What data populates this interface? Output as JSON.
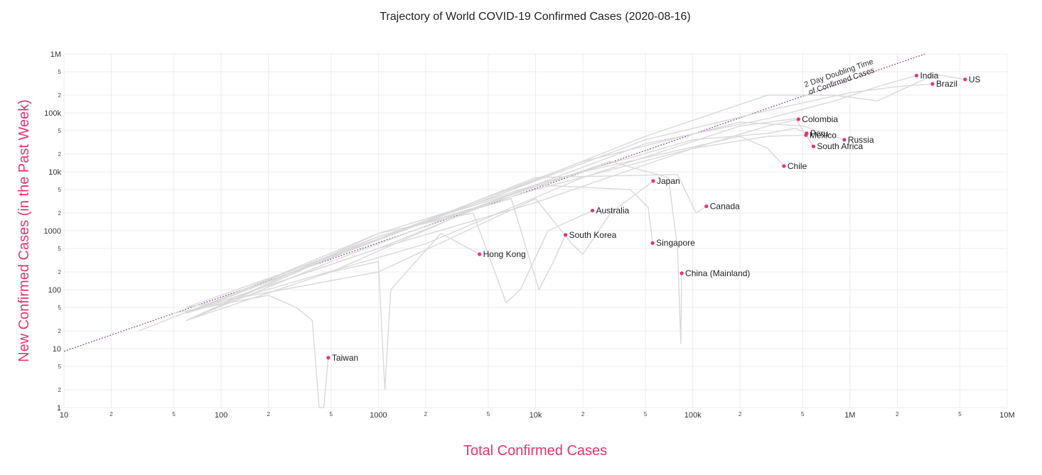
{
  "chart_data": {
    "type": "line",
    "title": "Trajectory of World COVID-19 Confirmed Cases (2020-08-16)",
    "xlabel": "Total Confirmed Cases",
    "ylabel": "New Confirmed Cases (in the Past Week)",
    "x_scale": "log",
    "y_scale": "log",
    "xlim": [
      10,
      10000000
    ],
    "ylim": [
      1,
      1000000
    ],
    "grid": true,
    "accent_color": "#e8336d",
    "trajectory_color": "#d9d9d9",
    "reference_line_color": "#8a4f8a",
    "x_major_ticks": [
      {
        "value": 10,
        "label": "10"
      },
      {
        "value": 100,
        "label": "100"
      },
      {
        "value": 1000,
        "label": "1000"
      },
      {
        "value": 10000,
        "label": "10k"
      },
      {
        "value": 100000,
        "label": "100k"
      },
      {
        "value": 1000000,
        "label": "1M"
      },
      {
        "value": 10000000,
        "label": "10M"
      }
    ],
    "x_minor_ticks": [
      {
        "value": 20,
        "label": "2"
      },
      {
        "value": 50,
        "label": "5"
      },
      {
        "value": 200,
        "label": "2"
      },
      {
        "value": 500,
        "label": "5"
      },
      {
        "value": 2000,
        "label": "2"
      },
      {
        "value": 5000,
        "label": "5"
      },
      {
        "value": 20000,
        "label": "2"
      },
      {
        "value": 50000,
        "label": "5"
      },
      {
        "value": 200000,
        "label": "2"
      },
      {
        "value": 500000,
        "label": "5"
      },
      {
        "value": 2000000,
        "label": "2"
      },
      {
        "value": 5000000,
        "label": "5"
      }
    ],
    "y_major_ticks": [
      {
        "value": 1,
        "label": "1"
      },
      {
        "value": 10,
        "label": "10"
      },
      {
        "value": 100,
        "label": "100"
      },
      {
        "value": 1000,
        "label": "1000"
      },
      {
        "value": 10000,
        "label": "10k"
      },
      {
        "value": 100000,
        "label": "100k"
      },
      {
        "value": 1000000,
        "label": "1M"
      }
    ],
    "y_minor_ticks": [
      {
        "value": 2,
        "label": "2"
      },
      {
        "value": 5,
        "label": "5"
      },
      {
        "value": 20,
        "label": "2"
      },
      {
        "value": 50,
        "label": "5"
      },
      {
        "value": 200,
        "label": "2"
      },
      {
        "value": 500,
        "label": "5"
      },
      {
        "value": 2000,
        "label": "2"
      },
      {
        "value": 5000,
        "label": "5"
      },
      {
        "value": 20000,
        "label": "2"
      },
      {
        "value": 50000,
        "label": "5"
      },
      {
        "value": 200000,
        "label": "2"
      },
      {
        "value": 500000,
        "label": "5"
      }
    ],
    "reference_line": {
      "label_line1": "2 Day Doubling Time",
      "label_line2": "of Confirmed Cases",
      "points": [
        [
          10,
          9
        ],
        [
          3000000,
          1000000
        ]
      ]
    },
    "series": [
      {
        "name": "US",
        "end": [
          5400000,
          370000
        ],
        "points": [
          [
            60,
            50
          ],
          [
            400,
            300
          ],
          [
            5000,
            3500
          ],
          [
            50000,
            40000
          ],
          [
            300000,
            200000
          ],
          [
            800000,
            200000
          ],
          [
            1500000,
            160000
          ],
          [
            2500000,
            300000
          ],
          [
            3500000,
            450000
          ],
          [
            5400000,
            370000
          ]
        ]
      },
      {
        "name": "India",
        "end": [
          2650000,
          430000
        ],
        "points": [
          [
            60,
            30
          ],
          [
            500,
            300
          ],
          [
            5000,
            3000
          ],
          [
            50000,
            30000
          ],
          [
            300000,
            80000
          ],
          [
            800000,
            160000
          ],
          [
            1500000,
            280000
          ],
          [
            2650000,
            430000
          ]
        ]
      },
      {
        "name": "Brazil",
        "end": [
          3350000,
          310000
        ],
        "points": [
          [
            60,
            40
          ],
          [
            500,
            350
          ],
          [
            5000,
            3500
          ],
          [
            50000,
            35000
          ],
          [
            300000,
            110000
          ],
          [
            1000000,
            220000
          ],
          [
            2000000,
            280000
          ],
          [
            3350000,
            310000
          ]
        ]
      },
      {
        "name": "Colombia",
        "end": [
          470000,
          78000
        ],
        "points": [
          [
            60,
            40
          ],
          [
            1000,
            500
          ],
          [
            10000,
            3000
          ],
          [
            100000,
            25000
          ],
          [
            300000,
            60000
          ],
          [
            470000,
            78000
          ]
        ]
      },
      {
        "name": "Peru",
        "end": [
          530000,
          45000
        ],
        "points": [
          [
            60,
            30
          ],
          [
            1000,
            900
          ],
          [
            10000,
            6000
          ],
          [
            100000,
            35000
          ],
          [
            300000,
            45000
          ],
          [
            450000,
            55000
          ],
          [
            530000,
            45000
          ]
        ]
      },
      {
        "name": "Mexico",
        "end": [
          525000,
          42000
        ],
        "points": [
          [
            60,
            30
          ],
          [
            1000,
            800
          ],
          [
            10000,
            5000
          ],
          [
            100000,
            25000
          ],
          [
            300000,
            40000
          ],
          [
            525000,
            42000
          ]
        ]
      },
      {
        "name": "Russia",
        "end": [
          920000,
          35000
        ],
        "points": [
          [
            60,
            40
          ],
          [
            2000,
            1500
          ],
          [
            20000,
            15000
          ],
          [
            200000,
            70000
          ],
          [
            500000,
            60000
          ],
          [
            920000,
            35000
          ]
        ]
      },
      {
        "name": "South Africa",
        "end": [
          585000,
          27000
        ],
        "points": [
          [
            60,
            40
          ],
          [
            2000,
            600
          ],
          [
            20000,
            8000
          ],
          [
            200000,
            60000
          ],
          [
            450000,
            80000
          ],
          [
            585000,
            27000
          ]
        ]
      },
      {
        "name": "Chile",
        "end": [
          380000,
          12500
        ],
        "points": [
          [
            60,
            40
          ],
          [
            2000,
            1500
          ],
          [
            20000,
            10000
          ],
          [
            200000,
            40000
          ],
          [
            300000,
            25000
          ],
          [
            380000,
            12500
          ]
        ]
      },
      {
        "name": "Japan",
        "end": [
          56000,
          7000
        ],
        "points": [
          [
            60,
            50
          ],
          [
            1000,
            200
          ],
          [
            10000,
            3500
          ],
          [
            17000,
            600
          ],
          [
            20000,
            400
          ],
          [
            30000,
            2000
          ],
          [
            56000,
            7000
          ]
        ]
      },
      {
        "name": "Canada",
        "end": [
          122000,
          2600
        ],
        "points": [
          [
            60,
            40
          ],
          [
            1000,
            700
          ],
          [
            10000,
            8000
          ],
          [
            80000,
            9000
          ],
          [
            105000,
            2000
          ],
          [
            122000,
            2600
          ]
        ]
      },
      {
        "name": "Australia",
        "end": [
          23000,
          2200
        ],
        "points": [
          [
            60,
            40
          ],
          [
            1000,
            900
          ],
          [
            4000,
            2000
          ],
          [
            6500,
            60
          ],
          [
            8000,
            100
          ],
          [
            12000,
            1000
          ],
          [
            23000,
            2200
          ]
        ]
      },
      {
        "name": "South Korea",
        "end": [
          15500,
          850
        ],
        "points": [
          [
            30,
            20
          ],
          [
            1000,
            800
          ],
          [
            7000,
            3500
          ],
          [
            10500,
            100
          ],
          [
            13000,
            300
          ],
          [
            15500,
            850
          ]
        ]
      },
      {
        "name": "Singapore",
        "end": [
          55500,
          620
        ],
        "points": [
          [
            60,
            40
          ],
          [
            1000,
            500
          ],
          [
            10000,
            6000
          ],
          [
            40000,
            5000
          ],
          [
            52000,
            2500
          ],
          [
            55500,
            620
          ]
        ]
      },
      {
        "name": "Hong Kong",
        "end": [
          4400,
          400
        ],
        "points": [
          [
            60,
            30
          ],
          [
            500,
            200
          ],
          [
            1000,
            300
          ],
          [
            1100,
            2
          ],
          [
            1200,
            100
          ],
          [
            2500,
            900
          ],
          [
            4400,
            400
          ]
        ]
      },
      {
        "name": "China (Mainland)",
        "end": [
          85000,
          190
        ],
        "points": [
          [
            500,
            200
          ],
          [
            5000,
            3000
          ],
          [
            30000,
            15000
          ],
          [
            70000,
            8000
          ],
          [
            80000,
            500
          ],
          [
            84000,
            12
          ],
          [
            85000,
            190
          ]
        ]
      },
      {
        "name": "Taiwan",
        "end": [
          480,
          7
        ],
        "points": [
          [
            50,
            40
          ],
          [
            200,
            80
          ],
          [
            300,
            50
          ],
          [
            380,
            30
          ],
          [
            420,
            1
          ],
          [
            450,
            1
          ],
          [
            480,
            7
          ]
        ]
      }
    ]
  }
}
